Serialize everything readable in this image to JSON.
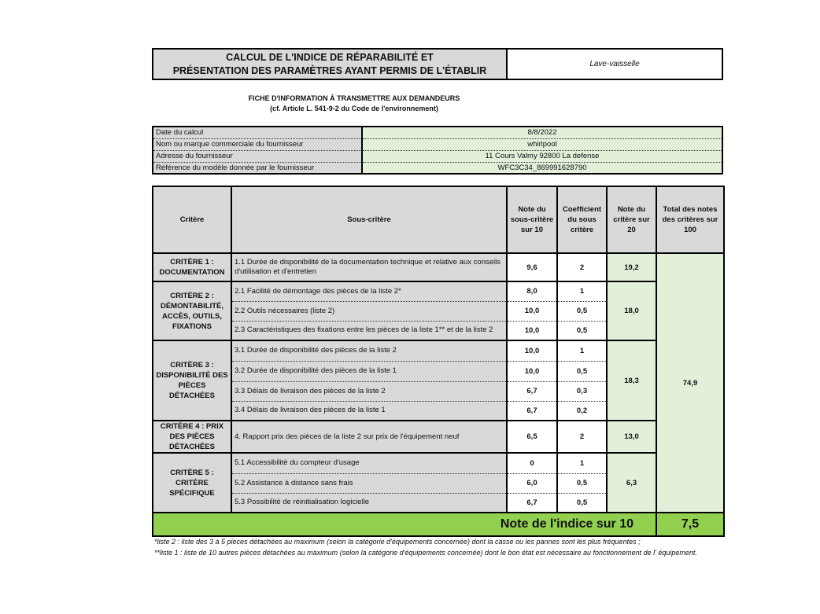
{
  "header": {
    "title_line1": "CALCUL DE L'INDICE DE RÉPARABILITÉ ET",
    "title_line2": "PRÉSENTATION DES PARAMÈTRES AYANT PERMIS DE L'ÉTABLIR",
    "product": "Lave-vaisselle"
  },
  "subtitle": {
    "line1": "FICHE D'INFORMATION À TRANSMETTRE AUX DEMANDEURS",
    "line2": "(cf. Article L. 541-9-2 du Code de l'environnement)"
  },
  "info": [
    {
      "label": "Date du calcul",
      "value": "8/8/2022"
    },
    {
      "label": "Nom ou marque commerciale du fournisseur",
      "value": "whirlpool"
    },
    {
      "label": "Adresse du fournisseur",
      "value": "11 Cours Valmy 92800 La defense"
    },
    {
      "label": "Référence du modèle donnée par le fournisseur",
      "value": "WFC3C34_869991628790"
    }
  ],
  "columns": [
    "Critère",
    "Sous-critère",
    "Note du sous-critère sur 10",
    "Coefficient du sous critère",
    "Note du critère sur 20",
    "Total des notes des critères sur 100"
  ],
  "criteria": [
    {
      "name": "CRITÈRE 1 : DOCUMENTATION",
      "score": "19,2",
      "subs": [
        {
          "label": "1.1 Durée de disponibilité de la documentation technique et relative aux conseils d'utilisation et d'entretien",
          "note": "9,6",
          "coef": "2"
        }
      ]
    },
    {
      "name": "CRITÈRE 2 : DÉMONTABILITÉ, ACCÈS, OUTILS, FIXATIONS",
      "score": "18,0",
      "subs": [
        {
          "label": "2.1 Facilité de démontage des pièces de la liste 2*",
          "note": "8,0",
          "coef": "1"
        },
        {
          "label": "2.2 Outils nécessaires (liste 2)",
          "note": "10,0",
          "coef": "0,5"
        },
        {
          "label": "2.3 Caractéristiques des fixations entre les pièces de la liste 1** et de la liste 2",
          "note": "10,0",
          "coef": "0,5"
        }
      ]
    },
    {
      "name": "CRITÈRE 3 : DISPONIBILITÉ DES PIÈCES DÉTACHÉES",
      "score": "18,3",
      "subs": [
        {
          "label": "3.1 Durée de disponibilité des pièces de la liste 2",
          "note": "10,0",
          "coef": "1"
        },
        {
          "label": "3.2 Durée de disponibilité des pièces de la liste 1",
          "note": "10,0",
          "coef": "0,5"
        },
        {
          "label": "3.3 Délais de livraison des pièces de la liste 2",
          "note": "6,7",
          "coef": "0,3"
        },
        {
          "label": "3.4 Délais de livraison des pièces de la liste 1",
          "note": "6,7",
          "coef": "0,2"
        }
      ]
    },
    {
      "name": "CRITÈRE 4 : PRIX DES PIÈCES DÉTACHÉES",
      "score": "13,0",
      "subs": [
        {
          "label": "4. Rapport prix des pièces de la liste 2 sur prix de l'équipement neuf",
          "note": "6,5",
          "coef": "2"
        }
      ]
    },
    {
      "name": "CRITÈRE 5 : CRITÈRE SPÉCIFIQUE",
      "score": "6,3",
      "subs": [
        {
          "label": "5.1 Accessibilité du compteur d'usage",
          "note": "0",
          "coef": "1"
        },
        {
          "label": "5.2 Assistance à distance sans frais",
          "note": "6,0",
          "coef": "0,5"
        },
        {
          "label": "5.3 Possibilité de réinitialisation logicielle",
          "note": "6,7",
          "coef": "0,5"
        }
      ]
    }
  ],
  "total": "74,9",
  "final": {
    "label": "Note de l'indice sur 10",
    "value": "7,5"
  },
  "footnotes": [
    "*liste 2 : liste des 3 à 5 pièces détachées au maximum (selon la catégorie d'équipements concernée) dont la casse ou les pannes sont les plus fréquentes ;",
    "**liste 1 : liste de 10 autres pièces détachées au maximum (selon la catégorie d'équipements concernée) dont le bon état est nécessaire au fonctionnement de l' équipement."
  ],
  "colors": {
    "gray": "#d9d9d9",
    "light_green": "#e2efd9",
    "green": "#92d050"
  }
}
